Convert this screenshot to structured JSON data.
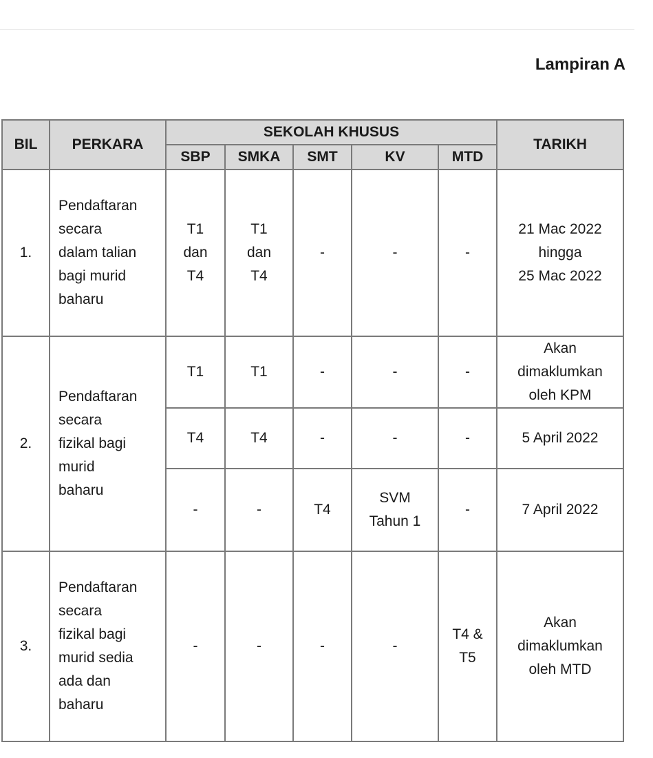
{
  "title": "Lampiran A",
  "headers": {
    "bil": "BIL",
    "perkara": "PERKARA",
    "sekolah_khusus": "SEKOLAH KHUSUS",
    "sbp": "SBP",
    "smka": "SMKA",
    "smt": "SMT",
    "kv": "KV",
    "mtd": "MTD",
    "tarikh": "TARIKH"
  },
  "rows": [
    {
      "bil": "1.",
      "perkara": [
        "Pendaftaran",
        "secara",
        "dalam talian",
        "bagi murid",
        "baharu"
      ],
      "sbp": [
        "T1",
        "dan",
        "T4"
      ],
      "smka": [
        "T1",
        "dan",
        "T4"
      ],
      "smt": "-",
      "kv": "-",
      "mtd": "-",
      "tarikh": [
        "21 Mac 2022",
        "hingga",
        "25 Mac 2022"
      ]
    },
    {
      "bil": "2.",
      "perkara": [
        "Pendaftaran",
        "secara",
        "fizikal bagi",
        "murid",
        "baharu"
      ],
      "sub": [
        {
          "sbp": "T1",
          "smka": "T1",
          "smt": "-",
          "kv": [
            "-"
          ],
          "mtd": "-",
          "tarikh": [
            "Akan",
            "dimaklumkan",
            "oleh KPM"
          ]
        },
        {
          "sbp": "T4",
          "smka": "T4",
          "smt": "-",
          "kv": [
            "-"
          ],
          "mtd": "-",
          "tarikh": [
            "5 April 2022"
          ]
        },
        {
          "sbp": "-",
          "smka": "-",
          "smt": "T4",
          "kv": [
            "SVM",
            "Tahun 1"
          ],
          "mtd": "-",
          "tarikh": [
            "7 April 2022"
          ]
        }
      ]
    },
    {
      "bil": "3.",
      "perkara": [
        "Pendaftaran",
        "secara",
        "fizikal bagi",
        "murid sedia",
        "ada dan",
        "baharu"
      ],
      "sbp": "-",
      "smka": "-",
      "smt": "-",
      "kv": "-",
      "mtd": [
        "T4 &",
        "T5"
      ],
      "tarikh": [
        "Akan",
        "dimaklumkan",
        "oleh MTD"
      ]
    }
  ]
}
